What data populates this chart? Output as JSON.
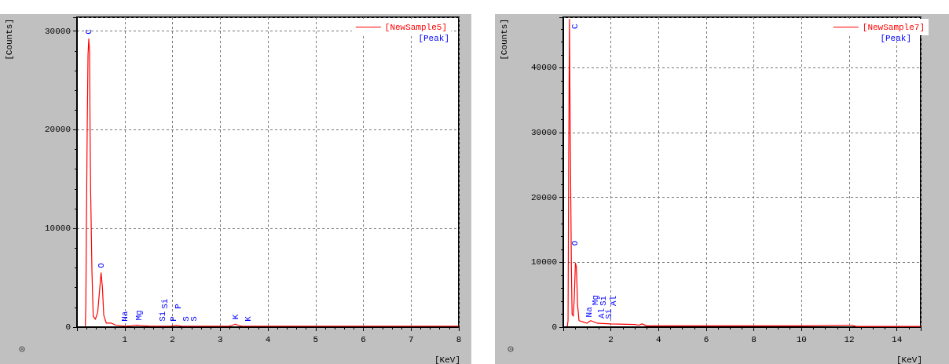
{
  "chart_data": [
    {
      "type": "line",
      "xlabel": "[KeV]",
      "ylabel": "[Counts]",
      "marker": "none",
      "grid": true,
      "legend": "top right",
      "xlim": [
        0,
        8
      ],
      "xticks": [
        1,
        2,
        3,
        4,
        5,
        6,
        7,
        8
      ],
      "ylim": [
        0,
        31400
      ],
      "yticks": [
        0,
        10000,
        20000,
        30000
      ],
      "series": [
        {
          "name": "[NewSample5]",
          "color": "#ff0000",
          "x": [
            0.175,
            0.186,
            0.198,
            0.214,
            0.231,
            0.247,
            0.264,
            0.274,
            0.285,
            0.313,
            0.34,
            0.385,
            0.434,
            0.478,
            0.505,
            0.533,
            0.561,
            0.615,
            0.726,
            0.808,
            1.03,
            1.25,
            1.53,
            1.97,
            2.08,
            2.19,
            2.3,
            2.63,
            3.18,
            3.26,
            3.32,
            3.37,
            3.46,
            4.28,
            8
          ],
          "values": [
            100,
            2500,
            10600,
            20000,
            27600,
            29200,
            27900,
            20000,
            14200,
            5700,
            1100,
            800,
            1500,
            4000,
            5500,
            4000,
            1200,
            400,
            400,
            200,
            100,
            200,
            100,
            100,
            200,
            100,
            100,
            100,
            100,
            200,
            300,
            200,
            100,
            100,
            100
          ]
        }
      ],
      "annotations": [
        "[Peak]",
        {
          "text": "C",
          "x": 0.247,
          "y": 29200
        },
        {
          "text": "O",
          "x": 0.505,
          "y": 5500
        },
        {
          "text": "Na",
          "x": 1.01,
          "y": 100
        },
        {
          "text": "Mg",
          "x": 1.3,
          "y": 200
        },
        {
          "text": "Si",
          "x": 1.8,
          "y": 100
        },
        {
          "text": "Si",
          "x": 1.84,
          "y": 100
        },
        {
          "text": "P",
          "x": 2.02,
          "y": 100
        },
        {
          "text": "P",
          "x": 2.13,
          "y": 100
        },
        {
          "text": "S",
          "x": 2.29,
          "y": 100
        },
        {
          "text": "S",
          "x": 2.46,
          "y": 100
        },
        {
          "text": "K",
          "x": 3.32,
          "y": 300
        },
        {
          "text": "K",
          "x": 3.59,
          "y": 100
        }
      ]
    },
    {
      "type": "line",
      "xlabel": "[KeV]",
      "ylabel": "[Counts]",
      "marker": "none",
      "grid": true,
      "legend": "top right",
      "xlim": [
        0,
        15
      ],
      "xticks": [
        2,
        4,
        6,
        8,
        10,
        12,
        14
      ],
      "ylim": [
        0,
        47800
      ],
      "yticks": [
        0,
        10000,
        20000,
        30000,
        40000
      ],
      "series": [
        {
          "name": "[NewSample7]",
          "color": "#ff0000",
          "x": [
            0.17,
            0.2,
            0.23,
            0.26,
            0.29,
            0.34,
            0.37,
            0.42,
            0.46,
            0.51,
            0.55,
            0.6,
            0.66,
            0.83,
            0.99,
            1.15,
            1.43,
            1.98,
            3,
            3.18,
            3.3,
            3.5,
            6,
            10,
            11.9,
            12.1,
            12.3,
            13,
            15
          ],
          "values": [
            100,
            1000,
            27000,
            47500,
            31000,
            9300,
            2000,
            1700,
            4400,
            9900,
            9300,
            3500,
            1000,
            800,
            600,
            1000,
            600,
            500,
            400,
            300,
            500,
            200,
            200,
            200,
            300,
            300,
            100,
            100,
            100
          ]
        }
      ],
      "annotations": [
        "[Peak]",
        {
          "text": "C",
          "x": 0.26,
          "y": 47500
        },
        {
          "text": "O",
          "x": 0.51,
          "y": 9900
        },
        {
          "text": "Na",
          "x": 1.08,
          "y": 800
        },
        {
          "text": "Mg",
          "x": 1.34,
          "y": 700
        },
        {
          "text": "Al",
          "x": 1.63,
          "y": 600
        },
        {
          "text": "Si",
          "x": 1.9,
          "y": 500
        },
        {
          "text": "Si",
          "x": 1.67,
          "y": 600
        },
        {
          "text": "Al",
          "x": 1.59,
          "y": 600
        }
      ]
    }
  ]
}
